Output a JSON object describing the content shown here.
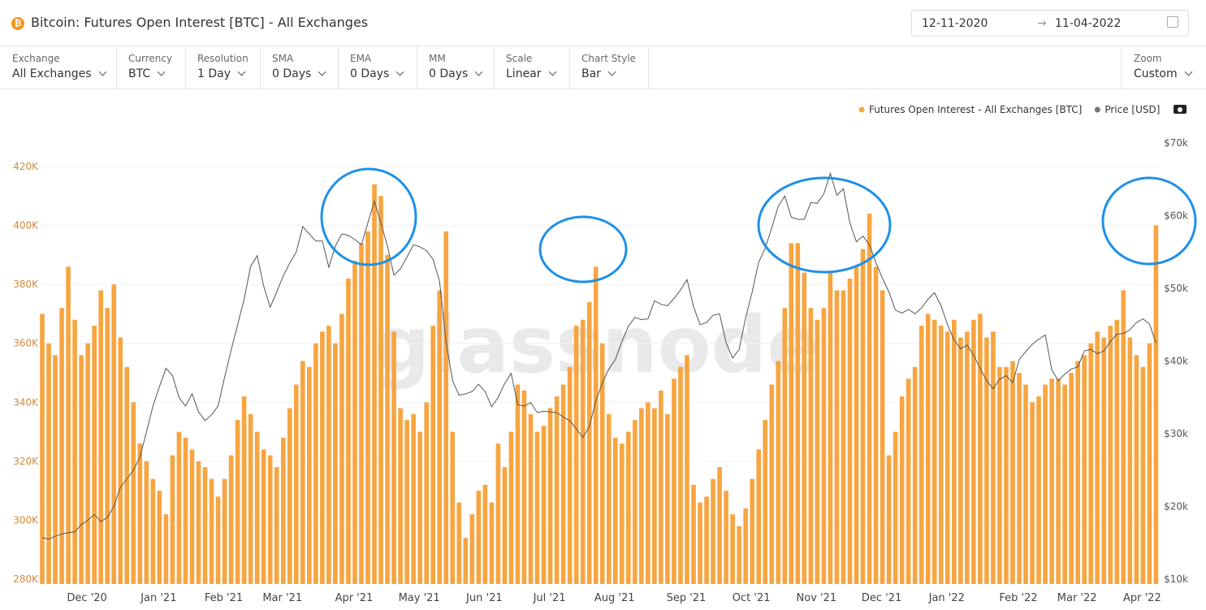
{
  "header": {
    "title": "Bitcoin: Futures Open Interest [BTC] - All Exchanges",
    "date_from": "12-11-2020",
    "date_to": "11-04-2022"
  },
  "toolbar": [
    {
      "label": "Exchange",
      "value": "All Exchanges"
    },
    {
      "label": "Currency",
      "value": "BTC"
    },
    {
      "label": "Resolution",
      "value": "1 Day"
    },
    {
      "label": "SMA",
      "value": "0 Days"
    },
    {
      "label": "EMA",
      "value": "0 Days"
    },
    {
      "label": "MM",
      "value": "0 Days"
    },
    {
      "label": "Scale",
      "value": "Linear"
    },
    {
      "label": "Chart Style",
      "value": "Bar"
    }
  ],
  "zoom": {
    "label": "Zoom",
    "value": "Custom"
  },
  "watermark": "glassnode",
  "chart_data": {
    "type": "bar",
    "grid": true,
    "categories": [
      null,
      null,
      null,
      null,
      null,
      null,
      "Dec '20",
      null,
      null,
      null,
      null,
      null,
      null,
      null,
      null,
      null,
      null,
      "Jan '21",
      null,
      null,
      null,
      null,
      null,
      null,
      null,
      null,
      null,
      "Feb '21",
      null,
      null,
      null,
      null,
      null,
      null,
      null,
      null,
      "Mar '21",
      null,
      null,
      null,
      null,
      null,
      null,
      null,
      null,
      null,
      null,
      "Apr '21",
      null,
      null,
      null,
      null,
      null,
      null,
      null,
      null,
      null,
      "May '21",
      null,
      null,
      null,
      null,
      null,
      null,
      null,
      null,
      null,
      "Jun '21",
      null,
      null,
      null,
      null,
      null,
      null,
      null,
      null,
      null,
      "Jul '21",
      null,
      null,
      null,
      null,
      null,
      null,
      null,
      null,
      null,
      "Aug '21",
      null,
      null,
      null,
      null,
      null,
      null,
      null,
      null,
      null,
      null,
      "Sep '21",
      null,
      null,
      null,
      null,
      null,
      null,
      null,
      null,
      null,
      "Oct '21",
      null,
      null,
      null,
      null,
      null,
      null,
      null,
      null,
      null,
      "Nov '21",
      null,
      null,
      null,
      null,
      null,
      null,
      null,
      null,
      null,
      "Dec '21",
      null,
      null,
      null,
      null,
      null,
      null,
      null,
      null,
      null,
      "Jan '22",
      null,
      null,
      null,
      null,
      null,
      null,
      null,
      null,
      null,
      null,
      "Feb '22",
      null,
      null,
      null,
      null,
      null,
      null,
      null,
      null,
      "Mar '22",
      null,
      null,
      null,
      null,
      null,
      null,
      null,
      null,
      null,
      "Apr '22",
      null,
      null,
      null
    ],
    "series": [
      {
        "name": "Futures Open Interest - All Exchanges [BTC]",
        "color": "#f7a541",
        "values": [
          370000,
          360000,
          356000,
          372000,
          386000,
          368000,
          356000,
          360000,
          366000,
          378000,
          372000,
          380000,
          362000,
          352000,
          340000,
          326000,
          320000,
          314000,
          310000,
          302000,
          322000,
          330000,
          328000,
          324000,
          320000,
          318000,
          314000,
          308000,
          314000,
          322000,
          334000,
          342000,
          336000,
          330000,
          324000,
          322000,
          318000,
          328000,
          338000,
          346000,
          354000,
          352000,
          360000,
          364000,
          366000,
          360000,
          370000,
          382000,
          388000,
          394000,
          398000,
          414000,
          410000,
          390000,
          364000,
          338000,
          334000,
          336000,
          330000,
          340000,
          366000,
          378000,
          398000,
          330000,
          306000,
          294000,
          302000,
          310000,
          312000,
          306000,
          326000,
          318000,
          330000,
          346000,
          344000,
          336000,
          330000,
          332000,
          338000,
          342000,
          346000,
          352000,
          366000,
          368000,
          374000,
          386000,
          360000,
          336000,
          328000,
          326000,
          330000,
          334000,
          338000,
          340000,
          338000,
          344000,
          336000,
          348000,
          352000,
          356000,
          312000,
          306000,
          308000,
          314000,
          318000,
          310000,
          302000,
          298000,
          304000,
          314000,
          324000,
          334000,
          346000,
          354000,
          372000,
          394000,
          394000,
          384000,
          372000,
          368000,
          372000,
          384000,
          378000,
          378000,
          382000,
          386000,
          392000,
          404000,
          386000,
          378000,
          322000,
          330000,
          342000,
          348000,
          352000,
          366000,
          370000,
          368000,
          366000,
          364000,
          368000,
          362000,
          364000,
          368000,
          370000,
          362000,
          364000,
          352000,
          352000,
          354000,
          350000,
          346000,
          340000,
          342000,
          346000,
          348000,
          348000,
          346000,
          350000,
          354000,
          356000,
          360000,
          364000,
          362000,
          366000,
          368000,
          378000,
          362000,
          356000,
          352000,
          360000,
          400000
        ]
      },
      {
        "name": "Price [USD]",
        "color": "#555555",
        "type": "line",
        "axis": "y2",
        "values": [
          15700,
          15500,
          15900,
          16200,
          16400,
          16500,
          17500,
          18100,
          18900,
          17900,
          18500,
          20000,
          22600,
          23800,
          25000,
          26800,
          30200,
          33800,
          36500,
          39000,
          38000,
          35000,
          33800,
          35500,
          33000,
          31800,
          32600,
          33800,
          37800,
          41500,
          45000,
          48500,
          53000,
          54500,
          50300,
          47400,
          49500,
          51700,
          53500,
          55000,
          58500,
          57500,
          56500,
          56500,
          52900,
          55800,
          57500,
          57300,
          56700,
          56000,
          59000,
          62000,
          59000,
          55800,
          51800,
          52700,
          54300,
          56000,
          55700,
          55200,
          54000,
          51000,
          42700,
          37300,
          35300,
          35500,
          35800,
          36800,
          35800,
          33700,
          35000,
          36900,
          38300,
          34000,
          33800,
          34300,
          32900,
          33100,
          33000,
          32900,
          32300,
          31800,
          30700,
          29500,
          31000,
          34500,
          37000,
          38900,
          40200,
          42700,
          44800,
          46000,
          45700,
          45800,
          48300,
          47800,
          47600,
          48600,
          49800,
          51200,
          47500,
          45000,
          45300,
          46300,
          46500,
          42500,
          40400,
          41600,
          46000,
          49500,
          53600,
          55500,
          58300,
          61300,
          62700,
          59800,
          59500,
          59500,
          61800,
          61700,
          63000,
          65800,
          62800,
          63700,
          59000,
          56400,
          57200,
          56000,
          53500,
          51400,
          49500,
          47000,
          46600,
          47100,
          46500,
          47300,
          48500,
          49400,
          47600,
          45000,
          42900,
          41700,
          42200,
          40800,
          39000,
          37300,
          36200,
          37500,
          38000,
          37000,
          40200,
          41300,
          42300,
          43000,
          43600,
          38800,
          37300,
          38200,
          38900,
          39200,
          41400,
          41600,
          41000,
          41400,
          42700,
          43700,
          43800,
          44300,
          45300,
          45800,
          45100,
          42500
        ]
      }
    ],
    "ylim": [
      280000,
      428000
    ],
    "yticks": [
      {
        "value": 280000,
        "label": "280K"
      },
      {
        "value": 300000,
        "label": "300K"
      },
      {
        "value": 320000,
        "label": "320K"
      },
      {
        "value": 340000,
        "label": "340K"
      },
      {
        "value": 360000,
        "label": "360K"
      },
      {
        "value": 380000,
        "label": "380K"
      },
      {
        "value": 400000,
        "label": "400K"
      },
      {
        "value": 420000,
        "label": "420K"
      }
    ],
    "y2lim": [
      10000,
      70000
    ],
    "y2ticks": [
      {
        "value": 10000,
        "label": "$10k"
      },
      {
        "value": 20000,
        "label": "$20k"
      },
      {
        "value": 30000,
        "label": "$30k"
      },
      {
        "value": 40000,
        "label": "$40k"
      },
      {
        "value": 50000,
        "label": "$50k"
      },
      {
        "value": 60000,
        "label": "$60k"
      },
      {
        "value": 70000,
        "label": "$70k"
      }
    ]
  }
}
